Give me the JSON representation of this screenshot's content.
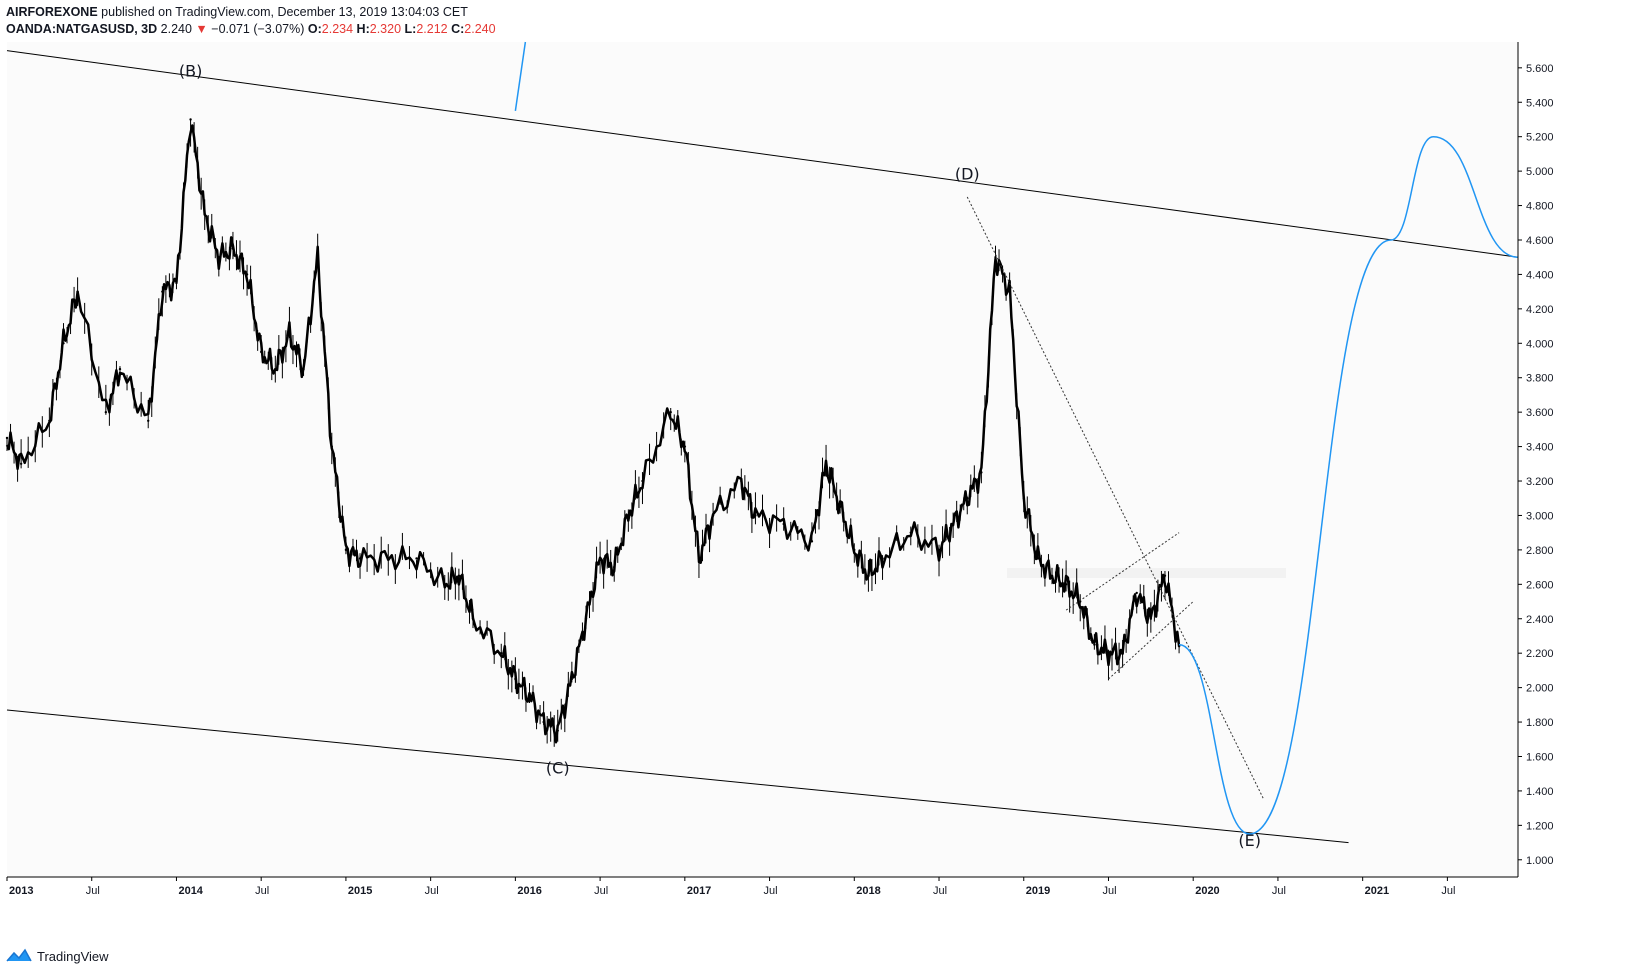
{
  "header": {
    "author": "AIRFOREXONE",
    "published": "published on TradingView.com, December 13, 2019 13:04:03 CET",
    "symbol": "OANDA:NATGASUSD, 3D",
    "last": "2.240",
    "change": "−0.071 (−3.07%)",
    "o_label": "O:",
    "o_value": "2.234",
    "h_label": "H:",
    "h_value": "2.320",
    "l_label": "L:",
    "l_value": "2.212",
    "c_label": "C:",
    "c_value": "2.240"
  },
  "footer": {
    "brand": "TradingView"
  },
  "colors": {
    "candle": "#000000",
    "projection": "#2196f3",
    "grid_bg": "#fbfbfb",
    "down": "#e53935"
  },
  "chart_data": {
    "type": "line",
    "y_axis": {
      "ylim": [
        0.9,
        5.75
      ],
      "ticks": [
        "5.600",
        "5.400",
        "5.200",
        "5.000",
        "4.800",
        "4.600",
        "4.400",
        "4.200",
        "4.000",
        "3.800",
        "3.600",
        "3.400",
        "3.200",
        "3.000",
        "2.800",
        "2.600",
        "2.400",
        "2.200",
        "2.000",
        "1.800",
        "1.600",
        "1.400",
        "1.200",
        "1.000"
      ]
    },
    "x_axis": {
      "xlim": [
        "2013-01",
        "2021-12"
      ],
      "ticks": [
        "2013",
        "Jul",
        "2014",
        "Jul",
        "2015",
        "Jul",
        "2016",
        "Jul",
        "2017",
        "Jul",
        "2018",
        "Jul",
        "2019",
        "Jul",
        "2020",
        "Jul",
        "2021",
        "Jul"
      ],
      "tick_dates": [
        "2013-01",
        "2013-07",
        "2014-01",
        "2014-07",
        "2015-01",
        "2015-07",
        "2016-01",
        "2016-07",
        "2017-01",
        "2017-07",
        "2018-01",
        "2018-07",
        "2019-01",
        "2019-07",
        "2020-01",
        "2020-07",
        "2021-01",
        "2021-07"
      ]
    },
    "series": [
      {
        "x": [
          "2013-01",
          "2013-02",
          "2013-04",
          "2013-05",
          "2013-06",
          "2013-08",
          "2013-09",
          "2013-11",
          "2013-12",
          "2014-01",
          "2014-02",
          "2014-03",
          "2014-04",
          "2014-05",
          "2014-06",
          "2014-07",
          "2014-08",
          "2014-09",
          "2014-10",
          "2014-11",
          "2014-12",
          "2015-01",
          "2015-02",
          "2015-04",
          "2015-06",
          "2015-08",
          "2015-09",
          "2015-10",
          "2015-12",
          "2016-01",
          "2016-02",
          "2016-03",
          "2016-04",
          "2016-05",
          "2016-06",
          "2016-07",
          "2016-08",
          "2016-09",
          "2016-10",
          "2016-12",
          "2017-01",
          "2017-02",
          "2017-03",
          "2017-05",
          "2017-06",
          "2017-08",
          "2017-10",
          "2017-11",
          "2017-12",
          "2018-01",
          "2018-02",
          "2018-03",
          "2018-05",
          "2018-07",
          "2018-08",
          "2018-09",
          "2018-10",
          "2018-11",
          "2018-12",
          "2019-01",
          "2019-02",
          "2019-03",
          "2019-04",
          "2019-05",
          "2019-06",
          "2019-07",
          "2019-08",
          "2019-09",
          "2019-10",
          "2019-11",
          "2019-12"
        ],
        "values": [
          3.45,
          3.3,
          3.55,
          4.0,
          4.3,
          3.6,
          3.85,
          3.55,
          4.3,
          4.35,
          5.3,
          4.75,
          4.5,
          4.55,
          4.4,
          3.95,
          3.85,
          4.05,
          3.85,
          4.5,
          3.4,
          2.8,
          2.75,
          2.75,
          2.75,
          2.6,
          2.65,
          2.4,
          2.2,
          2.05,
          1.95,
          1.8,
          1.75,
          2.05,
          2.4,
          2.75,
          2.7,
          3.0,
          3.2,
          3.6,
          3.4,
          2.75,
          3.0,
          3.2,
          3.0,
          2.95,
          2.85,
          3.3,
          3.05,
          2.8,
          2.65,
          2.75,
          2.9,
          2.8,
          2.95,
          3.1,
          3.25,
          4.5,
          4.3,
          3.1,
          2.75,
          2.65,
          2.6,
          2.5,
          2.25,
          2.2,
          2.2,
          2.55,
          2.4,
          2.65,
          2.24
        ]
      }
    ],
    "trendlines": [
      {
        "points": [
          [
            "2013-01",
            5.7
          ],
          [
            "2021-12",
            4.5
          ]
        ]
      },
      {
        "points": [
          [
            "2013-01",
            1.87
          ],
          [
            "2020-12",
            1.1
          ]
        ]
      }
    ],
    "projection": {
      "x": [
        "2019-12",
        "2020-05",
        "2021-03",
        "2021-06",
        "2021-12"
      ],
      "values": [
        2.25,
        1.15,
        4.6,
        5.2,
        4.5
      ]
    },
    "annotations": [
      {
        "text": "(B)",
        "x": "2014-02",
        "y": 5.55
      },
      {
        "text": "(C)",
        "x": "2016-04",
        "y": 1.5
      },
      {
        "text": "(D)",
        "x": "2018-09",
        "y": 4.95
      },
      {
        "text": "(E)",
        "x": "2020-05",
        "y": 1.08
      }
    ]
  }
}
